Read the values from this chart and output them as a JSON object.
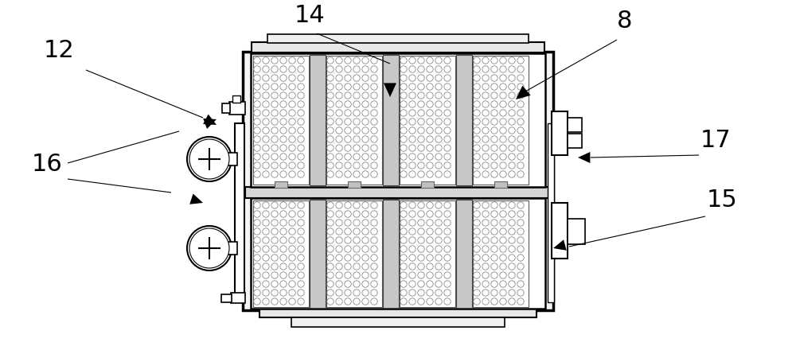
{
  "bg_color": "#ffffff",
  "lc": "#000000",
  "figsize": [
    10.0,
    4.45
  ],
  "dpi": 100,
  "label_fontsize": 22
}
